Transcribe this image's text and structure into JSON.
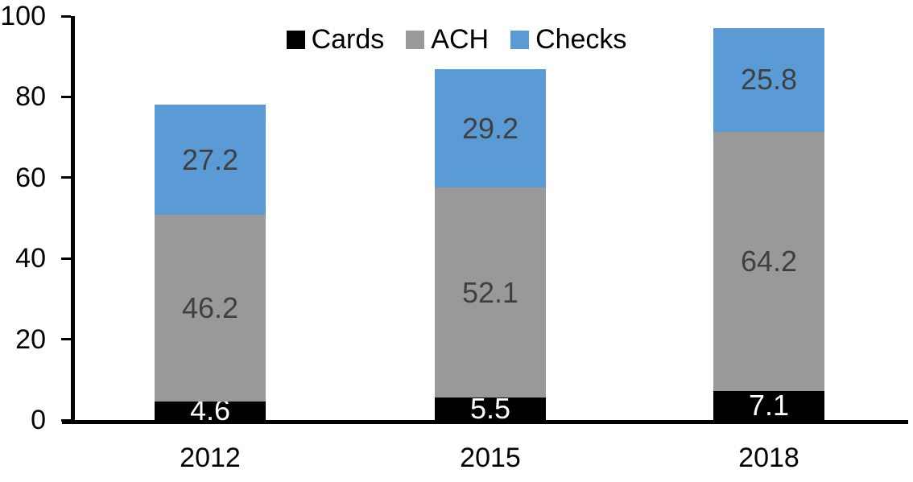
{
  "chart_data": {
    "type": "bar",
    "stacked": true,
    "title": "",
    "xlabel": "",
    "ylabel": "",
    "categories": [
      "2012",
      "2015",
      "2018"
    ],
    "series": [
      {
        "name": "Cards",
        "color": "#000000",
        "label_color": "#FFFFFF",
        "values": [
          4.6,
          5.5,
          7.1
        ]
      },
      {
        "name": "ACH",
        "color": "#999999",
        "label_color": "#404040",
        "values": [
          46.2,
          52.1,
          64.2
        ]
      },
      {
        "name": "Checks",
        "color": "#5B9BD5",
        "label_color": "#404040",
        "values": [
          27.2,
          29.2,
          25.8
        ]
      }
    ],
    "totals": [
      78.0,
      86.8,
      97.1
    ],
    "ylim": [
      0,
      100
    ],
    "yticks": [
      0,
      20,
      40,
      60,
      80,
      100
    ],
    "grid": false,
    "legend_position": "top-center",
    "axis_color": "#000000",
    "background_color": "#FFFFFF"
  }
}
